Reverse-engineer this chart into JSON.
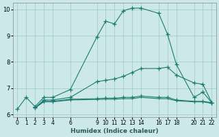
{
  "xlabel": "Humidex (Indice chaleur)",
  "bg_color": "#cce8e8",
  "grid_color": "#aad0d0",
  "line_color": "#1a7a6e",
  "xlim": [
    -0.5,
    22.5
  ],
  "ylim": [
    5.9,
    10.25
  ],
  "yticks": [
    6,
    7,
    8,
    9,
    10
  ],
  "xtick_positions": [
    0,
    1,
    2,
    3,
    4,
    6,
    9,
    10,
    11,
    12,
    13,
    14,
    16,
    17,
    18,
    20,
    21,
    22
  ],
  "lines": [
    {
      "x": [
        0,
        1,
        2,
        3,
        4,
        6,
        9,
        10,
        11,
        12,
        13,
        14,
        16,
        17,
        18,
        20,
        21,
        22
      ],
      "y": [
        6.2,
        6.65,
        6.3,
        6.65,
        6.65,
        6.95,
        8.95,
        9.55,
        9.45,
        9.95,
        10.05,
        10.05,
        9.85,
        9.05,
        7.9,
        6.65,
        6.85,
        6.45
      ],
      "marker": true
    },
    {
      "x": [
        2,
        3,
        4,
        6,
        9,
        10,
        11,
        12,
        13,
        14,
        16,
        17,
        18,
        20,
        21,
        22
      ],
      "y": [
        6.25,
        6.55,
        6.55,
        6.65,
        7.25,
        7.3,
        7.35,
        7.45,
        7.6,
        7.75,
        7.75,
        7.8,
        7.5,
        7.2,
        7.15,
        6.45
      ],
      "marker": true
    },
    {
      "x": [
        2,
        3,
        4,
        6,
        9,
        10,
        11,
        12,
        13,
        14,
        16,
        17,
        18,
        20,
        21,
        22
      ],
      "y": [
        6.25,
        6.5,
        6.5,
        6.58,
        6.6,
        6.62,
        6.62,
        6.65,
        6.65,
        6.7,
        6.65,
        6.65,
        6.55,
        6.5,
        6.5,
        6.45
      ],
      "marker": true
    },
    {
      "x": [
        2,
        3,
        4,
        6,
        9,
        10,
        11,
        12,
        13,
        14,
        16,
        17,
        18,
        20,
        21,
        22
      ],
      "y": [
        6.25,
        6.48,
        6.48,
        6.55,
        6.57,
        6.58,
        6.58,
        6.6,
        6.6,
        6.65,
        6.6,
        6.6,
        6.52,
        6.48,
        6.48,
        6.42
      ],
      "marker": false
    }
  ]
}
